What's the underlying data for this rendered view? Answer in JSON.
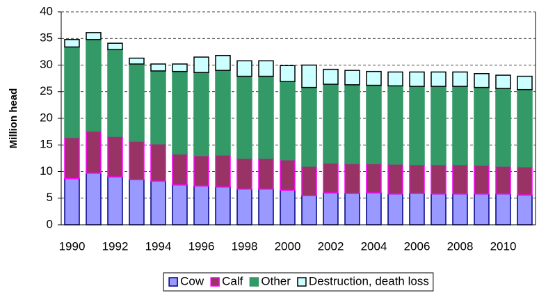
{
  "chart_data": {
    "type": "stacked_bar",
    "y_label": "Million head",
    "categories": [
      "1990",
      null,
      "1992",
      null,
      "1994",
      null,
      "1996",
      null,
      "1998",
      null,
      "2000",
      null,
      "2002",
      null,
      "2004",
      null,
      "2006",
      null,
      "2008",
      null,
      "2010",
      null
    ],
    "series": [
      {
        "name": "Cow",
        "color": "#9999ff",
        "edgecolor": "#000080",
        "values": [
          8.7,
          9.7,
          9.0,
          8.5,
          8.2,
          7.5,
          7.3,
          7.1,
          6.7,
          6.7,
          6.5,
          5.5,
          6.0,
          5.9,
          6.0,
          5.8,
          5.9,
          5.8,
          5.8,
          5.8,
          5.8,
          5.6
        ]
      },
      {
        "name": "Calf",
        "color": "#993366",
        "edgecolor": "#ff00ff",
        "values": [
          7.7,
          7.9,
          7.6,
          7.2,
          7.0,
          5.8,
          5.7,
          6.0,
          5.8,
          5.8,
          5.7,
          5.5,
          5.6,
          5.6,
          5.5,
          5.6,
          5.4,
          5.5,
          5.5,
          5.4,
          5.2,
          5.3
        ]
      },
      {
        "name": "Other",
        "color": "#339966",
        "edgecolor": "#339966",
        "values": [
          17.0,
          17.2,
          16.3,
          14.5,
          13.7,
          15.5,
          15.6,
          15.9,
          15.4,
          15.4,
          14.7,
          14.8,
          14.8,
          14.8,
          14.7,
          14.7,
          14.7,
          14.7,
          14.7,
          14.6,
          14.6,
          14.5
        ]
      },
      {
        "name": "Destruction, death loss",
        "color": "#ccffff",
        "edgecolor": "#000000",
        "values": [
          1.4,
          1.3,
          1.2,
          1.1,
          1.3,
          1.4,
          2.9,
          2.8,
          2.9,
          2.9,
          3.0,
          4.2,
          2.8,
          2.7,
          2.6,
          2.6,
          2.7,
          2.7,
          2.7,
          2.6,
          2.5,
          2.5
        ]
      }
    ],
    "ylim": [
      0,
      40
    ],
    "yticks": [
      0,
      5,
      10,
      15,
      20,
      25,
      30,
      35,
      40
    ],
    "grid": true,
    "legend": "bottom"
  }
}
